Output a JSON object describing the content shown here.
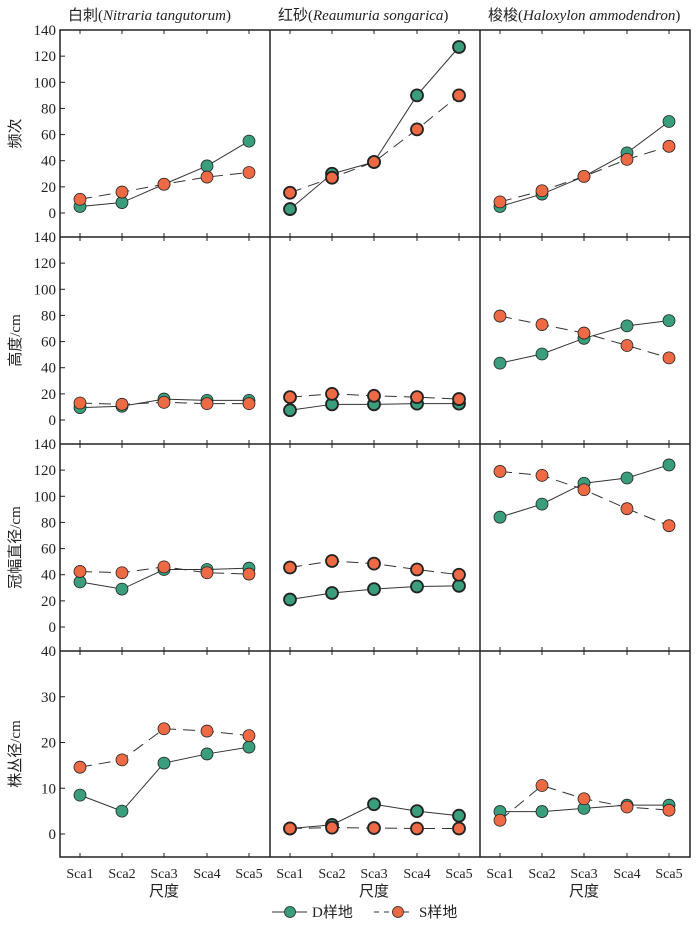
{
  "colors": {
    "D": "#3a9e7c",
    "S": "#ee6a45",
    "frame": "#222222"
  },
  "chart_data": {
    "type": "line",
    "categories": [
      "Sca1",
      "Sca2",
      "Sca3",
      "Sca4",
      "Sca5"
    ],
    "xlabel": "尺度",
    "legend": {
      "position": "bottom-center",
      "entries": [
        {
          "name": "D样地",
          "style": "solid"
        },
        {
          "name": "S样地",
          "style": "dashed"
        }
      ]
    },
    "columns": [
      {
        "title_cn": "白刺",
        "title_latin": "Nitraria tangutorum"
      },
      {
        "title_cn": "红砂",
        "title_latin": "Reaumuria songarica"
      },
      {
        "title_cn": "梭梭",
        "title_latin": "Haloxylon ammodendron"
      }
    ],
    "rows": [
      {
        "ylabel": "频次",
        "ylim": [
          -6,
          140
        ],
        "yticks": [
          0,
          20,
          40,
          60,
          80,
          100,
          120,
          140
        ],
        "panels": [
          {
            "D": [
              5,
              8,
              22,
              36,
              55
            ],
            "S": [
              10.5,
              16,
              22,
              27.5,
              31
            ]
          },
          {
            "D": [
              3,
              30,
              39,
              90,
              127
            ],
            "S": [
              15.5,
              27,
              39,
              64,
              90
            ]
          },
          {
            "D": [
              5,
              14.5,
              28,
              46,
              70
            ],
            "S": [
              8.5,
              17,
              28,
              41,
              51
            ]
          }
        ]
      },
      {
        "ylabel": "高度/cm",
        "ylim": [
          -6,
          140
        ],
        "yticks": [
          0,
          20,
          40,
          60,
          80,
          100,
          120,
          140
        ],
        "panels": [
          {
            "D": [
              9.5,
              10.5,
              16,
              15,
              15
            ],
            "S": [
              13,
              12,
              13.5,
              12.5,
              12.5
            ]
          },
          {
            "D": [
              7.5,
              12,
              12,
              12.5,
              12.5
            ],
            "S": [
              17.5,
              20,
              18.5,
              17.5,
              16
            ]
          },
          {
            "D": [
              43.5,
              50.5,
              62.5,
              72,
              76
            ],
            "S": [
              79.5,
              73,
              66.5,
              57,
              47.5
            ]
          }
        ]
      },
      {
        "ylabel": "冠幅直径/cm",
        "ylim": [
          -13,
          140
        ],
        "yticks": [
          0,
          20,
          40,
          60,
          80,
          100,
          120,
          140
        ],
        "panels": [
          {
            "D": [
              34.5,
              29,
              44,
              44,
              45
            ],
            "S": [
              42.5,
              41.5,
              46,
              41.5,
              40.5
            ]
          },
          {
            "D": [
              21,
              26,
              29,
              31,
              31.5
            ],
            "S": [
              45.5,
              50.5,
              48.5,
              44,
              40
            ]
          },
          {
            "D": [
              84,
              94,
              110,
              114,
              124
            ],
            "S": [
              119,
              116,
              105,
              90.5,
              77.5
            ]
          }
        ]
      },
      {
        "ylabel": "株丛径/cm",
        "ylim": [
          -5,
          40
        ],
        "yticks": [
          0,
          10,
          20,
          30,
          40
        ],
        "panels": [
          {
            "D": [
              8.5,
              5,
              15.5,
              17.5,
              19
            ],
            "S": [
              14.6,
              16.2,
              23,
              22.5,
              21.5
            ]
          },
          {
            "D": [
              1.2,
              2,
              6.5,
              5,
              4
            ],
            "S": [
              1.2,
              1.4,
              1.3,
              1.2,
              1.2
            ]
          },
          {
            "D": [
              4.9,
              4.9,
              5.6,
              6.3,
              6.3
            ],
            "S": [
              3,
              10.6,
              7.7,
              5.9,
              5.2
            ]
          }
        ]
      }
    ]
  }
}
